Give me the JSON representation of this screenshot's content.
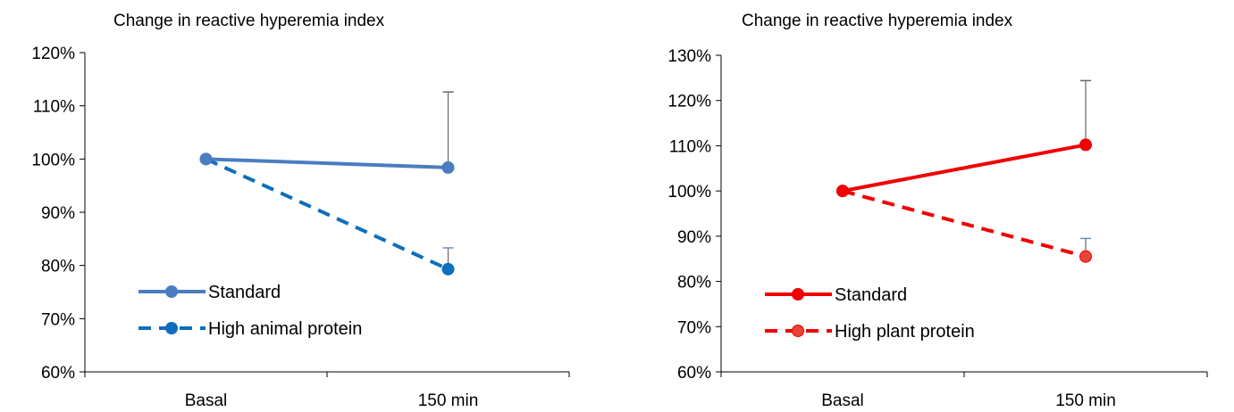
{
  "chart_data": [
    {
      "type": "line",
      "title": "Change in reactive hyperemia index",
      "xlabel": "",
      "ylabel": "",
      "categories": [
        "Basal",
        "150 min"
      ],
      "ylim": [
        0.6,
        1.2
      ],
      "yticks": [
        0.6,
        0.7,
        0.8,
        0.9,
        1.0,
        1.1,
        1.2
      ],
      "ytick_labels": [
        "60%",
        "70%",
        "80%",
        "90%",
        "100%",
        "110%",
        "120%"
      ],
      "grid": false,
      "legend_position": "bottom-left",
      "series": [
        {
          "name": "Standard",
          "values": [
            1.0,
            0.984
          ],
          "error_up": [
            null,
            0.142
          ],
          "style": "solid",
          "color": "#4a7dc0",
          "marker_fill": "#4a7dc0"
        },
        {
          "name": "High animal protein",
          "values": [
            1.0,
            0.793
          ],
          "error_up": [
            null,
            0.04
          ],
          "style": "dashed",
          "color": "#0e6fbd",
          "marker_fill": "#0e6fbd"
        }
      ]
    },
    {
      "type": "line",
      "title": "Change in reactive hyperemia index",
      "xlabel": "",
      "ylabel": "",
      "categories": [
        "Basal",
        "150 min"
      ],
      "ylim": [
        0.6,
        1.3
      ],
      "yticks": [
        0.6,
        0.7,
        0.8,
        0.9,
        1.0,
        1.1,
        1.2,
        1.3
      ],
      "ytick_labels": [
        "60%",
        "70%",
        "80%",
        "90%",
        "100%",
        "110%",
        "120%",
        "130%"
      ],
      "grid": false,
      "legend_position": "bottom-left",
      "series": [
        {
          "name": "Standard",
          "values": [
            1.0,
            1.102
          ],
          "error_up": [
            null,
            0.142
          ],
          "style": "solid",
          "color": "#f00000",
          "marker_fill": "#f00000"
        },
        {
          "name": "High plant protein",
          "values": [
            1.0,
            0.855
          ],
          "error_up": [
            null,
            0.04
          ],
          "style": "dashed",
          "color": "#f00000",
          "marker_fill": "#e8443a"
        }
      ]
    }
  ]
}
